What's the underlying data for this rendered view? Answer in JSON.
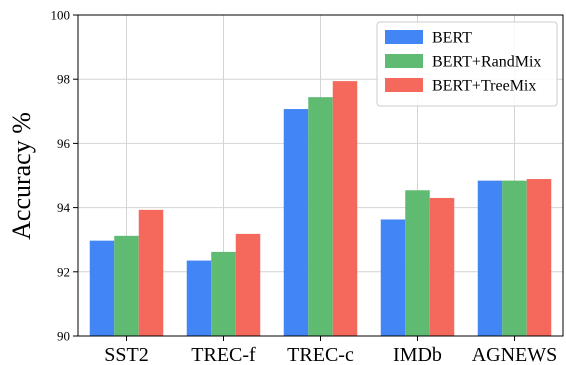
{
  "chart_data": {
    "type": "bar",
    "title": "",
    "xlabel": "",
    "ylabel": "Accuracy %",
    "ylim": [
      90,
      100
    ],
    "yticks": [
      90,
      92,
      94,
      96,
      98,
      100
    ],
    "grid": true,
    "legend_position": "top-right",
    "categories": [
      "SST2",
      "TREC-f",
      "TREC-c",
      "IMDb",
      "AGNEWS"
    ],
    "series": [
      {
        "name": "BERT",
        "color": "#4285f4",
        "values": [
          92.97,
          92.35,
          97.07,
          93.63,
          94.84
        ]
      },
      {
        "name": "BERT+RandMix",
        "color": "#5fba72",
        "values": [
          93.12,
          92.62,
          97.44,
          94.54,
          94.84
        ]
      },
      {
        "name": "BERT+TreeMix",
        "color": "#f4695c",
        "values": [
          93.93,
          93.18,
          97.94,
          94.3,
          94.89
        ]
      }
    ]
  }
}
